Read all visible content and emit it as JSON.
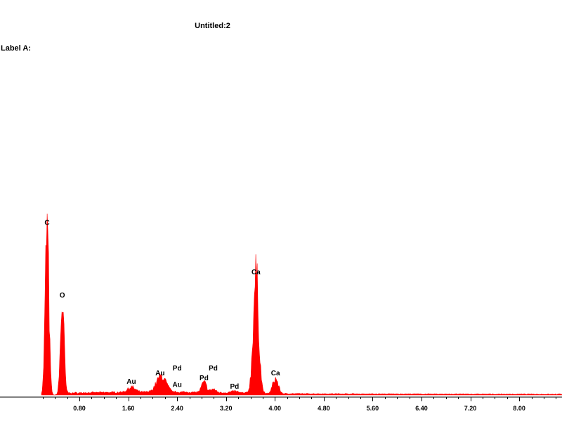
{
  "header": {
    "title": "Untitled:2",
    "label_a": "Label A:"
  },
  "colors": {
    "spectrum": "#ff0000",
    "axis": "#000000"
  },
  "chart_data": {
    "type": "area",
    "xlim": [
      -0.5,
      8.7
    ],
    "ylim": [
      0,
      1
    ],
    "x_ticks": [
      "0.80",
      "1.60",
      "2.40",
      "3.20",
      "4.00",
      "4.80",
      "5.60",
      "6.40",
      "7.20",
      "8.00"
    ],
    "x_tick_values": [
      0.8,
      1.6,
      2.4,
      3.2,
      4.0,
      4.8,
      5.6,
      6.4,
      7.2,
      8.0
    ],
    "peaks": [
      {
        "label": "C",
        "x": 0.27,
        "y": 1.0,
        "width": 0.03
      },
      {
        "label": "O",
        "x": 0.52,
        "y": 0.55,
        "width": 0.03
      },
      {
        "label": "Au",
        "x": 1.65,
        "y": 0.03,
        "width": 0.06
      },
      {
        "label": "Au",
        "x": 2.12,
        "y": 0.08,
        "width": 0.07
      },
      {
        "label": "Au",
        "x": 2.2,
        "y": 0.03,
        "width": 0.06
      },
      {
        "label": "Pd",
        "x": 2.84,
        "y": 0.06,
        "width": 0.04
      },
      {
        "label": "Pd",
        "x": 2.99,
        "y": 0.02,
        "width": 0.04
      },
      {
        "label": "Pd",
        "x": 3.34,
        "y": 0.01,
        "width": 0.05
      },
      {
        "label": "Ca",
        "x": 3.69,
        "y": 0.7,
        "width": 0.045
      },
      {
        "label": "Ca",
        "x": 4.01,
        "y": 0.09,
        "width": 0.045
      }
    ],
    "peak_labels": [
      {
        "text": "C",
        "x": 0.27,
        "y": 1.02
      },
      {
        "text": "O",
        "x": 0.52,
        "y": 0.58
      },
      {
        "text": "Au",
        "x": 1.65,
        "y": 0.06
      },
      {
        "text": "Au",
        "x": 2.12,
        "y": 0.11
      },
      {
        "text": "Pd",
        "x": 2.4,
        "y": 0.14
      },
      {
        "text": "Au",
        "x": 2.4,
        "y": 0.04
      },
      {
        "text": "Pd",
        "x": 2.99,
        "y": 0.14
      },
      {
        "text": "Pd",
        "x": 2.84,
        "y": 0.08
      },
      {
        "text": "Pd",
        "x": 3.34,
        "y": 0.03
      },
      {
        "text": "Ca",
        "x": 3.69,
        "y": 0.72
      },
      {
        "text": "Ca",
        "x": 4.01,
        "y": 0.11
      }
    ]
  }
}
